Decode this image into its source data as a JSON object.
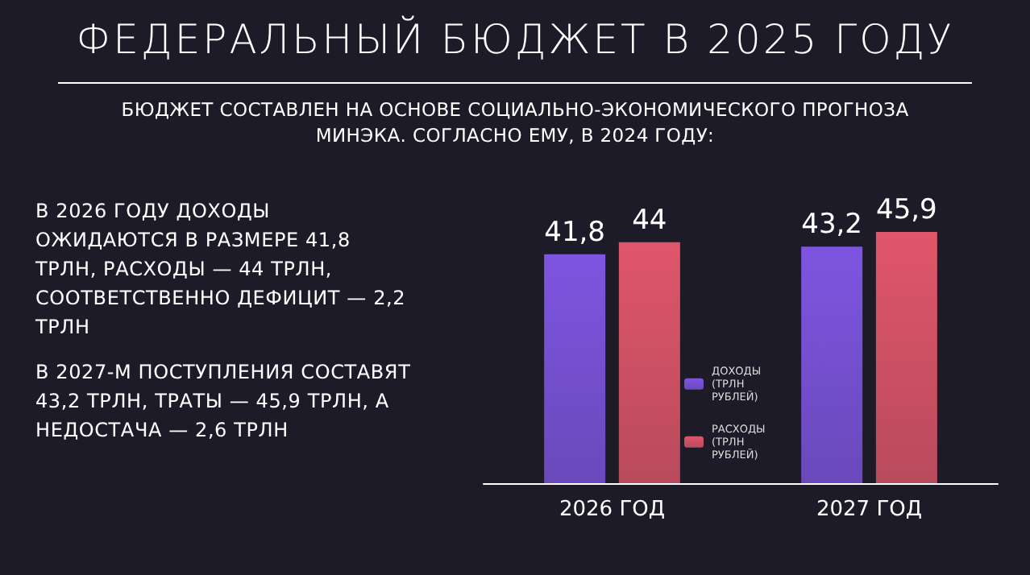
{
  "chart_data": {
    "type": "bar",
    "title": "ФЕДЕРАЛЬНЫЙ БЮДЖЕТ В 2025 ГОДУ",
    "subtitle": "БЮДЖЕТ СОСТАВЛЕН НА ОСНОВЕ СОЦИАЛЬНО-ЭКОНОМИЧЕСКОГО ПРОГНОЗА МИНЭКА. СОГЛАСНО ЕМУ, В 2024 ГОДУ:",
    "annotations": [
      "В 2026 ГОДУ ДОХОДЫ ОЖИДАЮТСЯ В РАЗМЕРЕ 41,8 ТРЛН, РАСХОДЫ — 44 ТРЛН, СООТВЕТСТВЕННО ДЕФИЦИТ — 2,2 ТРЛН",
      "В 2027-М ПОСТУПЛЕНИЯ СОСТАВЯТ 43,2 ТРЛН, ТРАТЫ — 45,9 ТРЛН, А НЕДОСТАЧА — 2,6 ТРЛН"
    ],
    "categories": [
      "2026 ГОД",
      "2027 ГОД"
    ],
    "series": [
      {
        "name": "ДОХОДЫ (ТРЛН РУБЛЕЙ)",
        "color": "#7d55e0",
        "values": [
          41.8,
          43.2
        ],
        "value_labels": [
          "41,8",
          "43,2"
        ]
      },
      {
        "name": "РАСХОДЫ (ТРЛН РУБЛЕЙ)",
        "color": "#e0566a",
        "values": [
          44,
          45.9
        ],
        "value_labels": [
          "44",
          "45,9"
        ]
      }
    ],
    "legend": "bottom",
    "grid": false
  }
}
